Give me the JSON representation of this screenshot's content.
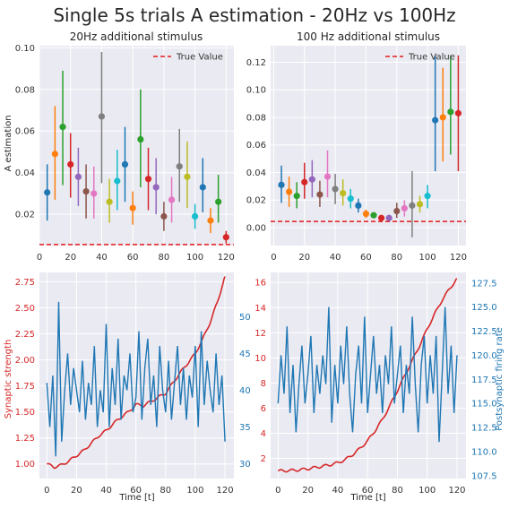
{
  "figure": {
    "suptitle": "Single 5s trials A estimation - 20Hz vs 100Hz"
  },
  "colors": {
    "cycle": [
      "#1f77b4",
      "#ff7f0e",
      "#2ca02c",
      "#d62728",
      "#9467bd",
      "#8c564b",
      "#e377c2",
      "#7f7f7f",
      "#bcbd22",
      "#17becf"
    ],
    "red": "#d62728",
    "blue": "#1f77b4",
    "true_line": "#e31a1c"
  },
  "chart_data": [
    {
      "id": "p20",
      "type": "scatter",
      "title": "20Hz additional stimulus",
      "xlabel": "",
      "ylabel": "A estimation",
      "xlim": [
        0,
        125
      ],
      "ylim": [
        0.005,
        0.101
      ],
      "xticks": [
        0,
        20,
        40,
        60,
        80,
        100,
        120
      ],
      "yticks": [
        0.02,
        0.04,
        0.06,
        0.08,
        0.1
      ],
      "ytick_labels": [
        "0.02",
        "0.04",
        "0.06",
        "0.08",
        "0.10"
      ],
      "legend": {
        "label": "True Value",
        "loc": "upper right"
      },
      "true_value": 0.0055,
      "grid": true,
      "points": [
        {
          "x": 5,
          "y": 0.0305,
          "lo": 0.017,
          "hi": 0.044
        },
        {
          "x": 10,
          "y": 0.049,
          "lo": 0.027,
          "hi": 0.072
        },
        {
          "x": 15,
          "y": 0.062,
          "lo": 0.034,
          "hi": 0.089
        },
        {
          "x": 20,
          "y": 0.044,
          "lo": 0.028,
          "hi": 0.059
        },
        {
          "x": 25,
          "y": 0.038,
          "lo": 0.024,
          "hi": 0.052
        },
        {
          "x": 30,
          "y": 0.031,
          "lo": 0.018,
          "hi": 0.044
        },
        {
          "x": 35,
          "y": 0.03,
          "lo": 0.018,
          "hi": 0.043
        },
        {
          "x": 40,
          "y": 0.067,
          "lo": 0.035,
          "hi": 0.098
        },
        {
          "x": 45,
          "y": 0.026,
          "lo": 0.016,
          "hi": 0.037
        },
        {
          "x": 50,
          "y": 0.036,
          "lo": 0.022,
          "hi": 0.051
        },
        {
          "x": 55,
          "y": 0.044,
          "lo": 0.026,
          "hi": 0.062
        },
        {
          "x": 60,
          "y": 0.023,
          "lo": 0.015,
          "hi": 0.031
        },
        {
          "x": 65,
          "y": 0.056,
          "lo": 0.033,
          "hi": 0.08
        },
        {
          "x": 70,
          "y": 0.037,
          "lo": 0.022,
          "hi": 0.052
        },
        {
          "x": 75,
          "y": 0.033,
          "lo": 0.02,
          "hi": 0.047
        },
        {
          "x": 80,
          "y": 0.019,
          "lo": 0.012,
          "hi": 0.026
        },
        {
          "x": 85,
          "y": 0.027,
          "lo": 0.016,
          "hi": 0.038
        },
        {
          "x": 90,
          "y": 0.043,
          "lo": 0.026,
          "hi": 0.061
        },
        {
          "x": 95,
          "y": 0.038,
          "lo": 0.023,
          "hi": 0.055
        },
        {
          "x": 100,
          "y": 0.019,
          "lo": 0.013,
          "hi": 0.025
        },
        {
          "x": 105,
          "y": 0.033,
          "lo": 0.021,
          "hi": 0.047
        },
        {
          "x": 110,
          "y": 0.017,
          "lo": 0.011,
          "hi": 0.023
        },
        {
          "x": 115,
          "y": 0.026,
          "lo": 0.016,
          "hi": 0.039
        },
        {
          "x": 120,
          "y": 0.009,
          "lo": 0.006,
          "hi": 0.012
        }
      ]
    },
    {
      "id": "p100",
      "type": "scatter",
      "title": "100 Hz additional stimulus",
      "xlabel": "",
      "ylabel": "",
      "xlim": [
        -2,
        125
      ],
      "ylim": [
        -0.013,
        0.132
      ],
      "xticks": [
        0,
        20,
        40,
        60,
        80,
        100,
        120
      ],
      "yticks": [
        0.0,
        0.02,
        0.04,
        0.06,
        0.08,
        0.1,
        0.12
      ],
      "ytick_labels": [
        "0.00",
        "0.02",
        "0.04",
        "0.06",
        "0.08",
        "0.10",
        "0.12"
      ],
      "legend": {
        "label": "True Value",
        "loc": "upper right"
      },
      "true_value": 0.0045,
      "grid": true,
      "points": [
        {
          "x": 5,
          "y": 0.031,
          "lo": 0.018,
          "hi": 0.045
        },
        {
          "x": 10,
          "y": 0.026,
          "lo": 0.015,
          "hi": 0.037
        },
        {
          "x": 15,
          "y": 0.023,
          "lo": 0.014,
          "hi": 0.033
        },
        {
          "x": 20,
          "y": 0.033,
          "lo": 0.021,
          "hi": 0.047
        },
        {
          "x": 25,
          "y": 0.035,
          "lo": 0.022,
          "hi": 0.049
        },
        {
          "x": 30,
          "y": 0.024,
          "lo": 0.015,
          "hi": 0.034
        },
        {
          "x": 35,
          "y": 0.037,
          "lo": 0.022,
          "hi": 0.056
        },
        {
          "x": 40,
          "y": 0.028,
          "lo": 0.017,
          "hi": 0.039
        },
        {
          "x": 45,
          "y": 0.025,
          "lo": 0.016,
          "hi": 0.035
        },
        {
          "x": 50,
          "y": 0.021,
          "lo": 0.014,
          "hi": 0.028
        },
        {
          "x": 55,
          "y": 0.016,
          "lo": 0.011,
          "hi": 0.021
        },
        {
          "x": 60,
          "y": 0.01,
          "lo": 0.007,
          "hi": 0.013
        },
        {
          "x": 65,
          "y": 0.009,
          "lo": 0.007,
          "hi": 0.011
        },
        {
          "x": 70,
          "y": 0.007,
          "lo": 0.005,
          "hi": 0.009
        },
        {
          "x": 75,
          "y": 0.007,
          "lo": 0.005,
          "hi": 0.009
        },
        {
          "x": 80,
          "y": 0.012,
          "lo": 0.007,
          "hi": 0.018
        },
        {
          "x": 85,
          "y": 0.014,
          "lo": 0.008,
          "hi": 0.02
        },
        {
          "x": 90,
          "y": 0.016,
          "lo": -0.007,
          "hi": 0.041
        },
        {
          "x": 95,
          "y": 0.017,
          "lo": 0.011,
          "hi": 0.023
        },
        {
          "x": 100,
          "y": 0.023,
          "lo": 0.014,
          "hi": 0.031
        },
        {
          "x": 105,
          "y": 0.078,
          "lo": 0.041,
          "hi": 0.125
        },
        {
          "x": 110,
          "y": 0.08,
          "lo": 0.048,
          "hi": 0.116
        },
        {
          "x": 115,
          "y": 0.084,
          "lo": 0.053,
          "hi": 0.125
        },
        {
          "x": 120,
          "y": 0.083,
          "lo": 0.041,
          "hi": 0.125
        }
      ]
    },
    {
      "id": "s20",
      "type": "line",
      "xlabel": "Time [t]",
      "ylabel_left": "Synaptic strength",
      "ylabel_right": "",
      "xlim": [
        -5,
        126
      ],
      "ylim_left": [
        0.86,
        2.84
      ],
      "ylim_right": [
        28,
        56
      ],
      "xticks": [
        0,
        20,
        40,
        60,
        80,
        100,
        120
      ],
      "yticks_left": [
        1.0,
        1.25,
        1.5,
        1.75,
        2.0,
        2.25,
        2.5,
        2.75
      ],
      "ytick_labels_left": [
        "1.00",
        "1.25",
        "1.50",
        "1.75",
        "2.00",
        "2.25",
        "2.50",
        "2.75"
      ],
      "yticks_right": [
        30,
        35,
        40,
        45,
        50
      ],
      "ytick_labels_right": [
        "30",
        "35",
        "40",
        "45",
        "50"
      ],
      "grid": true,
      "series": [
        {
          "axis": "left",
          "x": [
            0,
            5,
            10,
            15,
            20,
            25,
            30,
            35,
            40,
            45,
            50,
            55,
            60,
            65,
            70,
            75,
            80,
            85,
            90,
            95,
            100,
            105,
            110,
            115,
            120
          ],
          "y": [
            1.0,
            0.97,
            0.99,
            1.03,
            1.08,
            1.13,
            1.2,
            1.27,
            1.32,
            1.39,
            1.45,
            1.5,
            1.57,
            1.56,
            1.6,
            1.64,
            1.68,
            1.78,
            1.88,
            1.97,
            2.06,
            2.2,
            2.36,
            2.56,
            2.8
          ]
        },
        {
          "axis": "right",
          "x": [
            0,
            2,
            4,
            6,
            8,
            10,
            12,
            14,
            16,
            18,
            20,
            22,
            24,
            26,
            28,
            30,
            32,
            34,
            36,
            38,
            40,
            42,
            44,
            46,
            48,
            50,
            52,
            54,
            56,
            58,
            60,
            62,
            64,
            66,
            68,
            70,
            72,
            74,
            76,
            78,
            80,
            82,
            84,
            86,
            88,
            90,
            92,
            94,
            96,
            98,
            100,
            102,
            104,
            106,
            108,
            110,
            112,
            114,
            116,
            118,
            120
          ],
          "y": [
            41,
            35,
            42,
            31,
            52,
            33,
            40,
            45,
            38,
            43,
            40,
            37,
            44,
            36,
            41,
            38,
            46,
            35,
            40,
            37,
            49,
            35,
            43,
            38,
            47,
            36,
            42,
            40,
            45,
            37,
            39,
            48,
            36,
            43,
            47,
            38,
            42,
            35,
            46,
            40,
            37,
            44,
            36,
            41,
            46,
            38,
            43,
            36,
            42,
            39,
            46,
            35,
            48,
            38,
            44,
            40,
            37,
            45,
            38,
            42,
            33
          ]
        }
      ]
    },
    {
      "id": "s100",
      "type": "line",
      "xlabel": "Time [t]",
      "ylabel_left": "",
      "ylabel_right": "Postsynaptic firing rate",
      "xlim": [
        -5,
        126
      ],
      "ylim_left": [
        0.4,
        16.8
      ],
      "ylim_right": [
        107.2,
        128.6
      ],
      "xticks": [
        0,
        20,
        40,
        60,
        80,
        100,
        120
      ],
      "yticks_left": [
        2,
        4,
        6,
        8,
        10,
        12,
        14,
        16
      ],
      "ytick_labels_left": [
        "2",
        "4",
        "6",
        "8",
        "10",
        "12",
        "14",
        "16"
      ],
      "yticks_right": [
        107.5,
        110.0,
        112.5,
        115.0,
        117.5,
        120.0,
        122.5,
        125.0,
        127.5
      ],
      "ytick_labels_right": [
        "107.5",
        "110.0",
        "112.5",
        "115.0",
        "117.5",
        "120.0",
        "122.5",
        "125.0",
        "127.5"
      ],
      "grid": true,
      "series": [
        {
          "axis": "left",
          "x": [
            0,
            5,
            10,
            15,
            20,
            25,
            30,
            35,
            40,
            45,
            50,
            55,
            60,
            65,
            70,
            75,
            80,
            85,
            90,
            95,
            100,
            105,
            110,
            115,
            120
          ],
          "y": [
            1.0,
            1.02,
            1.05,
            1.1,
            1.18,
            1.28,
            1.38,
            1.5,
            1.65,
            1.9,
            2.3,
            2.8,
            3.4,
            4.2,
            5.1,
            6.2,
            7.4,
            8.6,
            9.8,
            11.0,
            12.3,
            13.5,
            14.6,
            15.5,
            16.3
          ]
        },
        {
          "axis": "right",
          "x": [
            0,
            2,
            4,
            6,
            8,
            10,
            12,
            14,
            16,
            18,
            20,
            22,
            24,
            26,
            28,
            30,
            32,
            34,
            36,
            38,
            40,
            42,
            44,
            46,
            48,
            50,
            52,
            54,
            56,
            58,
            60,
            62,
            64,
            66,
            68,
            70,
            72,
            74,
            76,
            78,
            80,
            82,
            84,
            86,
            88,
            90,
            92,
            94,
            96,
            98,
            100,
            102,
            104,
            106,
            108,
            110,
            112,
            114,
            116,
            118,
            120
          ],
          "y": [
            115,
            120,
            116,
            123,
            114,
            119,
            112,
            117,
            121,
            115,
            118,
            122,
            114,
            119,
            116,
            120,
            117,
            125,
            113,
            119,
            115,
            121,
            117,
            123,
            116,
            112,
            118,
            121,
            115,
            124,
            114,
            118,
            122,
            116,
            119,
            114,
            120,
            117,
            123,
            115,
            118,
            121,
            114,
            119,
            116,
            124,
            117,
            112,
            119,
            122,
            115,
            120,
            116,
            122,
            111,
            118,
            125,
            116,
            121,
            114,
            120
          ]
        }
      ]
    }
  ]
}
